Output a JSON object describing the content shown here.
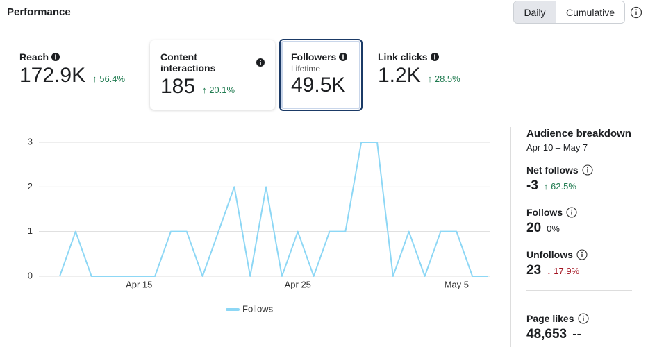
{
  "header": {
    "title": "Performance",
    "toggle": [
      "Daily",
      "Cumulative"
    ]
  },
  "metrics": [
    {
      "label": "Reach",
      "value": "172.9K",
      "change": "56.4%"
    },
    {
      "label": "Content interactions",
      "value": "185",
      "change": "20.1%"
    },
    {
      "label": "Followers",
      "sublabel": "Lifetime",
      "value": "49.5K"
    },
    {
      "label": "Link clicks",
      "value": "1.2K",
      "change": "28.5%"
    }
  ],
  "chart_data": {
    "type": "line",
    "categories": [
      null,
      null,
      null,
      null,
      null,
      "Apr 15",
      null,
      null,
      null,
      null,
      null,
      null,
      null,
      null,
      null,
      "Apr 25",
      null,
      null,
      null,
      null,
      null,
      null,
      null,
      null,
      null,
      "May 5",
      null,
      null
    ],
    "series": [
      {
        "name": "Follows",
        "color": "#8dd7f5",
        "values": [
          0,
          1,
          0,
          0,
          0,
          0,
          0,
          1,
          1,
          0,
          1,
          2,
          0,
          2,
          0,
          1,
          0,
          1,
          1,
          3,
          3,
          0,
          1,
          0,
          1,
          1,
          0,
          0
        ]
      }
    ],
    "ylim": [
      0,
      3
    ],
    "yticks": [
      0,
      1,
      2,
      3
    ],
    "grid": true
  },
  "breakdown": {
    "title": "Audience breakdown",
    "date_range": "Apr 10 – May 7",
    "items": [
      {
        "label": "Net follows",
        "value": "-3",
        "change": "62.5%"
      },
      {
        "label": "Follows",
        "value": "20",
        "change": "0%"
      },
      {
        "label": "Unfollows",
        "value": "23",
        "change": "17.9%"
      },
      {
        "label": "Page likes",
        "value": "48,653",
        "change": "--"
      }
    ]
  }
}
